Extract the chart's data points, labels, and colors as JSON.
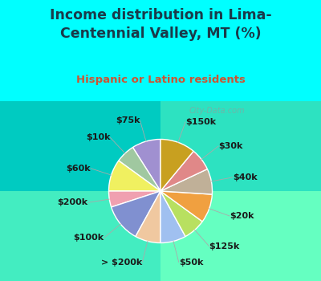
{
  "title": "Income distribution in Lima-\nCentennial Valley, MT (%)",
  "subtitle": "Hispanic or Latino residents",
  "title_color": "#1a3a4a",
  "subtitle_color": "#cc5533",
  "bg_top": "#00ffff",
  "watermark": "City-Data.com",
  "labels": [
    "$75k",
    "$10k",
    "$60k",
    "$200k",
    "$100k",
    "> $200k",
    "$50k",
    "$125k",
    "$20k",
    "$40k",
    "$30k",
    "$150k"
  ],
  "sizes": [
    9,
    6,
    10,
    5,
    12,
    8,
    8,
    7,
    9,
    8,
    7,
    11
  ],
  "colors": [
    "#a090d0",
    "#a0c8a0",
    "#f0f060",
    "#f0a0b0",
    "#8090d0",
    "#f0c8a0",
    "#a0c0f0",
    "#b8e060",
    "#f0a040",
    "#c0b098",
    "#e08888",
    "#c8a020"
  ],
  "label_fontsize": 8,
  "label_color": "#1a1a1a",
  "startangle": 90
}
